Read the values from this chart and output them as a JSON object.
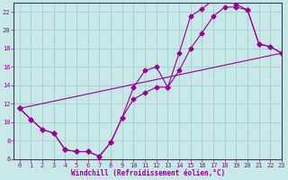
{
  "background_color": "#c8e8e8",
  "grid_color": "#a0c8c8",
  "line_color": "#990099",
  "xlabel": "Windchill (Refroidissement éolien,°C)",
  "xlim": [
    -0.5,
    23
  ],
  "ylim": [
    6,
    23
  ],
  "xticks": [
    0,
    1,
    2,
    3,
    4,
    5,
    6,
    7,
    8,
    9,
    10,
    11,
    12,
    13,
    14,
    15,
    16,
    17,
    18,
    19,
    20,
    21,
    22,
    23
  ],
  "yticks": [
    6,
    8,
    10,
    12,
    14,
    16,
    18,
    20,
    22
  ],
  "line1_x": [
    0,
    1,
    2,
    3,
    4,
    5,
    6,
    7,
    8,
    9,
    10,
    11,
    12,
    13,
    14,
    15,
    16,
    17,
    18,
    19,
    20,
    21,
    22,
    23
  ],
  "line1_y": [
    11.5,
    10.3,
    9.2,
    8.8,
    7.0,
    6.8,
    6.8,
    6.3,
    7.8,
    10.5,
    12.5,
    13.2,
    13.8,
    13.8,
    15.6,
    18.0,
    19.7,
    21.5,
    22.5,
    22.5,
    22.2,
    18.5,
    18.2,
    17.5
  ],
  "line2_x": [
    0,
    1,
    2,
    3,
    4,
    5,
    6,
    7,
    8,
    9,
    10,
    11,
    12,
    13,
    14,
    15,
    16,
    17,
    18,
    19,
    20,
    21,
    22,
    23
  ],
  "line2_y": [
    11.5,
    10.3,
    9.2,
    8.8,
    7.0,
    6.8,
    6.8,
    6.3,
    7.8,
    10.5,
    13.8,
    15.6,
    16.0,
    13.8,
    17.5,
    21.5,
    22.3,
    23.3,
    23.5,
    22.8,
    22.2,
    18.5,
    18.2,
    17.5
  ],
  "line3_x": [
    0,
    23
  ],
  "line3_y": [
    11.5,
    17.5
  ],
  "markersize": 2.5,
  "linewidth": 0.8
}
